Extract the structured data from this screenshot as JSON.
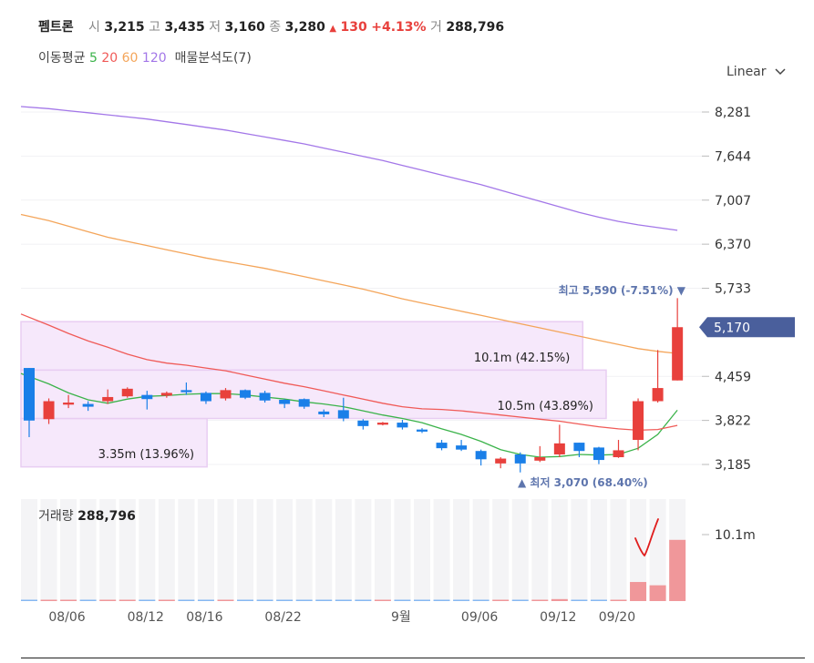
{
  "header": {
    "name": "펨트론",
    "open_label": "시",
    "open": "3,215",
    "high_label": "고",
    "high": "3,435",
    "low_label": "저",
    "low": "3,160",
    "close_label": "종",
    "close": "3,280",
    "change_arrow": "▲",
    "change": "130",
    "change_pct": "+4.13%",
    "volume_label": "거",
    "volume": "288,796"
  },
  "indicators": {
    "ma_label": "이동평균",
    "ma": [
      {
        "period": "5",
        "color": "#3bb34a"
      },
      {
        "period": "20",
        "color": "#f05a57"
      },
      {
        "period": "60",
        "color": "#f4a55a"
      },
      {
        "period": "120",
        "color": "#a377e8"
      }
    ],
    "profile_label": "매물분석도(7)"
  },
  "scale_label": "Linear",
  "colors": {
    "up": "#e8403c",
    "down": "#1a7fe8",
    "vol_up": "#f0979a",
    "vol_down": "#86b8f2",
    "current_price_bg": "#4a5f9c",
    "annot": "#5e75ad",
    "profile_fill": "#f6e8fb",
    "profile_stroke": "#e8cdf2"
  },
  "chart_data": {
    "type": "candlestick",
    "y_axis": {
      "range": [
        3000,
        8500
      ],
      "ticks": [
        "8,281",
        "7,644",
        "7,007",
        "6,370",
        "5,733",
        "4,459",
        "3,822",
        "3,185"
      ]
    },
    "x_axis": {
      "ticks": [
        "08/06",
        "08/12",
        "08/16",
        "08/22",
        "9월",
        "09/06",
        "09/12",
        "09/20"
      ],
      "tick_candle_index": [
        1,
        5,
        8,
        12,
        18,
        22,
        26,
        29
      ]
    },
    "candles": [
      {
        "o": 4580,
        "h": 4580,
        "l": 3580,
        "c": 3820
      },
      {
        "o": 3840,
        "h": 4140,
        "l": 3770,
        "c": 4100
      },
      {
        "o": 4050,
        "h": 4190,
        "l": 4000,
        "c": 4080
      },
      {
        "o": 4060,
        "h": 4100,
        "l": 3960,
        "c": 4020
      },
      {
        "o": 4100,
        "h": 4270,
        "l": 4060,
        "c": 4160
      },
      {
        "o": 4170,
        "h": 4300,
        "l": 4150,
        "c": 4280
      },
      {
        "o": 4190,
        "h": 4250,
        "l": 3980,
        "c": 4130
      },
      {
        "o": 4180,
        "h": 4240,
        "l": 4150,
        "c": 4220
      },
      {
        "o": 4260,
        "h": 4370,
        "l": 4190,
        "c": 4230
      },
      {
        "o": 4220,
        "h": 4240,
        "l": 4060,
        "c": 4100
      },
      {
        "o": 4140,
        "h": 4290,
        "l": 4110,
        "c": 4260
      },
      {
        "o": 4260,
        "h": 4270,
        "l": 4130,
        "c": 4150
      },
      {
        "o": 4220,
        "h": 4250,
        "l": 4080,
        "c": 4110
      },
      {
        "o": 4120,
        "h": 4130,
        "l": 4000,
        "c": 4060
      },
      {
        "o": 4130,
        "h": 4140,
        "l": 3990,
        "c": 4020
      },
      {
        "o": 3950,
        "h": 3980,
        "l": 3870,
        "c": 3910
      },
      {
        "o": 3970,
        "h": 4150,
        "l": 3810,
        "c": 3850
      },
      {
        "o": 3820,
        "h": 3840,
        "l": 3690,
        "c": 3740
      },
      {
        "o": 3760,
        "h": 3800,
        "l": 3750,
        "c": 3790
      },
      {
        "o": 3790,
        "h": 3830,
        "l": 3690,
        "c": 3720
      },
      {
        "o": 3690,
        "h": 3710,
        "l": 3640,
        "c": 3660
      },
      {
        "o": 3500,
        "h": 3540,
        "l": 3390,
        "c": 3420
      },
      {
        "o": 3460,
        "h": 3540,
        "l": 3380,
        "c": 3400
      },
      {
        "o": 3380,
        "h": 3400,
        "l": 3170,
        "c": 3260
      },
      {
        "o": 3200,
        "h": 3290,
        "l": 3130,
        "c": 3270
      },
      {
        "o": 3330,
        "h": 3360,
        "l": 3070,
        "c": 3200
      },
      {
        "o": 3240,
        "h": 3450,
        "l": 3220,
        "c": 3290
      },
      {
        "o": 3330,
        "h": 3760,
        "l": 3290,
        "c": 3490
      },
      {
        "o": 3500,
        "h": 3500,
        "l": 3290,
        "c": 3380
      },
      {
        "o": 3430,
        "h": 3440,
        "l": 3190,
        "c": 3250
      },
      {
        "o": 3290,
        "h": 3540,
        "l": 3280,
        "c": 3390
      },
      {
        "o": 3540,
        "h": 4140,
        "l": 3390,
        "c": 4100
      },
      {
        "o": 4100,
        "h": 4840,
        "l": 4080,
        "c": 4290
      },
      {
        "o": 4400,
        "h": 5590,
        "l": 4400,
        "c": 5170
      }
    ],
    "volume": {
      "label": "거래량",
      "latest": "288,796",
      "tick": "10.1m",
      "values_m": [
        0.1,
        0.1,
        0.05,
        0.05,
        0.05,
        0.05,
        0.05,
        0.05,
        0.05,
        0.05,
        0.05,
        0.05,
        0.05,
        0.05,
        0.05,
        0.05,
        0.05,
        0.05,
        0.05,
        0.05,
        0.05,
        0.05,
        0.05,
        0.05,
        0.05,
        0.1,
        0.15,
        0.3,
        0.15,
        0.1,
        0.2,
        2.9,
        2.4,
        9.3
      ]
    },
    "volume_profile": [
      {
        "low": 3150,
        "high": 3850,
        "value": "3.35m",
        "pct": "(13.96%)",
        "label": "3.35m (13.96%)",
        "rel_width": 0.318
      },
      {
        "low": 3850,
        "high": 4550,
        "value": "10.5m",
        "pct": "(43.89%)",
        "label": "10.5m (43.89%)",
        "rel_width": 1.0
      },
      {
        "low": 4550,
        "high": 5250,
        "value": "10.1m",
        "pct": "(42.15%)",
        "label": "10.1m (42.15%)",
        "rel_width": 0.96
      }
    ],
    "max_label": "최고 5,590 (-7.51%) ▼",
    "min_label": "▲ 최저 3,070 (68.40%)",
    "current_price": "5,170",
    "moving_averages": {
      "ma5": [
        4500,
        4350,
        4220,
        4120,
        4070,
        4130,
        4170,
        4180,
        4200,
        4210,
        4210,
        4190,
        4160,
        4130,
        4090,
        4060,
        4020,
        3960,
        3900,
        3850,
        3790,
        3700,
        3620,
        3520,
        3400,
        3330,
        3290,
        3300,
        3330,
        3320,
        3330,
        3420,
        3620,
        3970
      ],
      "ma20": [
        5360,
        5200,
        5080,
        4970,
        4880,
        4780,
        4700,
        4650,
        4620,
        4580,
        4540,
        4480,
        4420,
        4360,
        4310,
        4250,
        4190,
        4130,
        4070,
        4020,
        3990,
        3980,
        3960,
        3930,
        3900,
        3870,
        3840,
        3810,
        3770,
        3730,
        3700,
        3680,
        3690,
        3750
      ],
      "ma60": [
        6800,
        6710,
        6630,
        6550,
        6470,
        6410,
        6350,
        6290,
        6230,
        6170,
        6120,
        6070,
        6020,
        5960,
        5900,
        5840,
        5780,
        5720,
        5650,
        5580,
        5520,
        5460,
        5400,
        5340,
        5280,
        5220,
        5160,
        5100,
        5040,
        4980,
        4920,
        4860,
        4820,
        4790
      ],
      "ma120": [
        8360,
        8330,
        8300,
        8270,
        8240,
        8210,
        8180,
        8140,
        8100,
        8060,
        8020,
        7970,
        7920,
        7870,
        7820,
        7760,
        7700,
        7640,
        7580,
        7510,
        7440,
        7370,
        7300,
        7230,
        7150,
        7070,
        6990,
        6910,
        6830,
        6760,
        6700,
        6650,
        6610,
        6570
      ]
    }
  }
}
